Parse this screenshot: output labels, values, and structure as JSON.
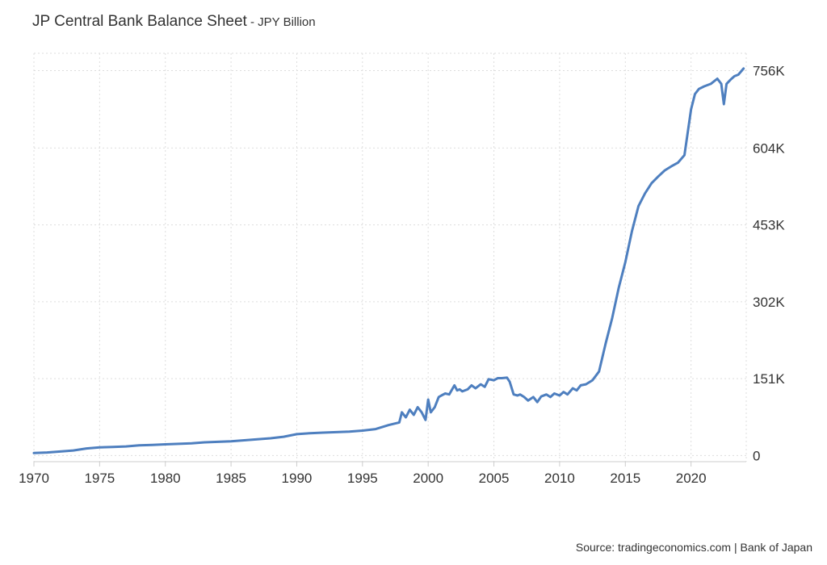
{
  "header": {
    "title": "JP Central Bank Balance Sheet",
    "subtitle_sep": " - ",
    "subtitle": "JPY Billion"
  },
  "footer": {
    "source": "Source: tradingeconomics.com | Bank of Japan"
  },
  "colors": {
    "line": "#4e7fbf",
    "grid": "#dddddd",
    "axis": "#cccccc",
    "text": "#333333"
  },
  "chart_data": {
    "type": "line",
    "title": "JP Central Bank Balance Sheet",
    "subtitle": "JPY Billion",
    "xlabel": "",
    "ylabel": "",
    "xlim": [
      1970,
      2024.2
    ],
    "ylim": [
      -12000,
      790000
    ],
    "grid": true,
    "y_axis_side": "right",
    "x_ticks": [
      {
        "value": 1970,
        "label": "1970"
      },
      {
        "value": 1975,
        "label": "1975"
      },
      {
        "value": 1980,
        "label": "1980"
      },
      {
        "value": 1985,
        "label": "1985"
      },
      {
        "value": 1990,
        "label": "1990"
      },
      {
        "value": 1995,
        "label": "1995"
      },
      {
        "value": 2000,
        "label": "2000"
      },
      {
        "value": 2005,
        "label": "2005"
      },
      {
        "value": 2010,
        "label": "2010"
      },
      {
        "value": 2015,
        "label": "2015"
      },
      {
        "value": 2020,
        "label": "2020"
      }
    ],
    "y_ticks": [
      {
        "value": 0,
        "label": "0"
      },
      {
        "value": 151000,
        "label": "151K"
      },
      {
        "value": 302000,
        "label": "302K"
      },
      {
        "value": 453000,
        "label": "453K"
      },
      {
        "value": 604000,
        "label": "604K"
      },
      {
        "value": 756000,
        "label": "756K"
      }
    ],
    "series": [
      {
        "x": [
          1970,
          1971,
          1972,
          1973,
          1974,
          1975,
          1976,
          1977,
          1978,
          1979,
          1980,
          1981,
          1982,
          1983,
          1984,
          1985,
          1986,
          1987,
          1988,
          1989,
          1990,
          1991,
          1992,
          1993,
          1994,
          1995,
          1996,
          1997,
          1997.8,
          1998,
          1998.3,
          1998.6,
          1998.9,
          1999.2,
          1999.5,
          1999.8,
          2000,
          2000.2,
          2000.5,
          2000.8,
          2001,
          2001.3,
          2001.6,
          2002,
          2002.2,
          2002.4,
          2002.6,
          2003,
          2003.3,
          2003.6,
          2004,
          2004.3,
          2004.6,
          2005,
          2005.3,
          2005.6,
          2006,
          2006.2,
          2006.5,
          2006.8,
          2007,
          2007.3,
          2007.6,
          2008,
          2008.3,
          2008.6,
          2009,
          2009.3,
          2009.6,
          2010,
          2010.3,
          2010.6,
          2011,
          2011.3,
          2011.6,
          2012,
          2012.5,
          2013,
          2013.5,
          2014,
          2014.5,
          2015,
          2015.5,
          2016,
          2016.5,
          2017,
          2017.5,
          2018,
          2018.5,
          2019,
          2019.5,
          2020,
          2020.3,
          2020.6,
          2021,
          2021.5,
          2022,
          2022.3,
          2022.5,
          2022.7,
          2023,
          2023.3,
          2023.6,
          2024
        ],
        "y": [
          5000,
          6000,
          8000,
          10000,
          14000,
          16000,
          17000,
          18000,
          20000,
          21000,
          22000,
          23000,
          24000,
          26000,
          27000,
          28000,
          30000,
          32000,
          34000,
          37000,
          42000,
          44000,
          45000,
          46000,
          47000,
          49000,
          52000,
          60000,
          65000,
          85000,
          75000,
          90000,
          80000,
          95000,
          85000,
          70000,
          110000,
          85000,
          95000,
          115000,
          118000,
          122000,
          120000,
          138000,
          128000,
          130000,
          126000,
          130000,
          138000,
          132000,
          140000,
          135000,
          150000,
          148000,
          152000,
          152000,
          153000,
          145000,
          120000,
          118000,
          120000,
          115000,
          108000,
          115000,
          105000,
          116000,
          120000,
          115000,
          122000,
          118000,
          125000,
          120000,
          132000,
          128000,
          138000,
          140000,
          148000,
          165000,
          220000,
          270000,
          330000,
          380000,
          440000,
          490000,
          515000,
          535000,
          548000,
          560000,
          568000,
          575000,
          590000,
          680000,
          710000,
          720000,
          725000,
          730000,
          740000,
          730000,
          690000,
          730000,
          738000,
          745000,
          748000,
          760000
        ]
      }
    ]
  }
}
